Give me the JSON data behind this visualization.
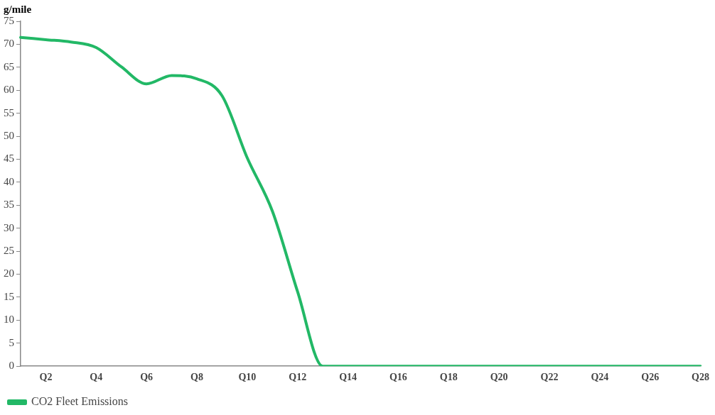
{
  "chart_data": {
    "type": "line",
    "ylabel": "g/mile",
    "categories": [
      null,
      "Q2",
      null,
      "Q4",
      null,
      "Q6",
      null,
      "Q8",
      null,
      "Q10",
      null,
      "Q12",
      null,
      "Q14",
      null,
      "Q16",
      null,
      "Q18",
      null,
      "Q20",
      null,
      "Q22",
      null,
      "Q24",
      null,
      "Q26",
      null,
      "Q28"
    ],
    "series": [
      {
        "name": "CO2 Fleet Emissions",
        "color": "#22b866",
        "values": [
          71.5,
          71.0,
          70.5,
          69.3,
          65.1,
          61.4,
          63.2,
          62.5,
          58.8,
          45.3,
          33.7,
          16.2,
          0,
          0,
          0,
          0,
          0,
          0,
          0,
          0,
          0,
          0,
          0,
          0,
          0,
          0,
          0,
          0
        ]
      }
    ],
    "ylim": [
      0,
      75
    ],
    "yticks": [
      0,
      5,
      10,
      15,
      20,
      25,
      30,
      35,
      40,
      45,
      50,
      55,
      60,
      65,
      70,
      75
    ],
    "grid": false,
    "legend": "bottom left",
    "marker": "none",
    "line_style": "solid"
  }
}
